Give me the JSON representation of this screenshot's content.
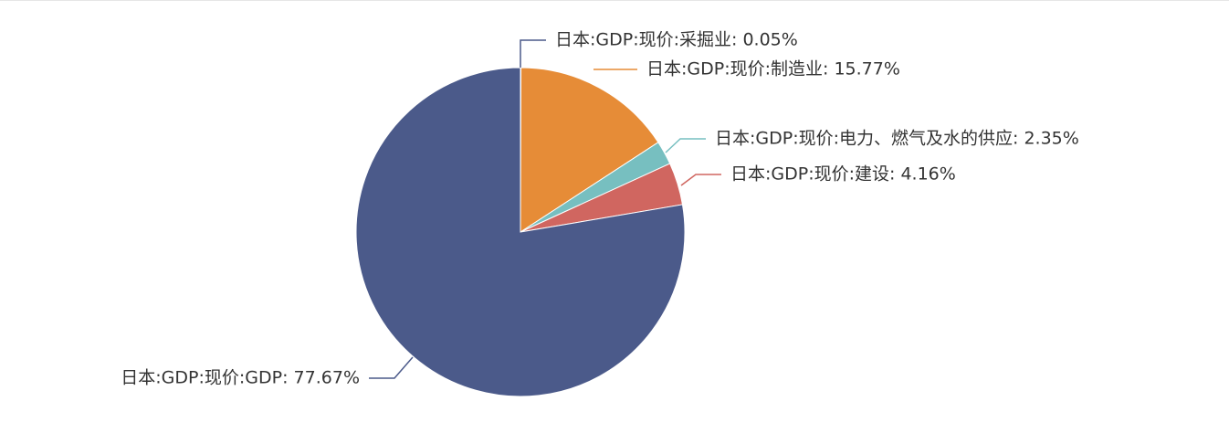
{
  "chart_data": {
    "type": "pie",
    "title": "",
    "slices": [
      {
        "name": "日本:GDP:现价:采掘业",
        "value": 0.05,
        "label": "日本:GDP:现价:采掘业: 0.05%",
        "color": "#4b5a8a"
      },
      {
        "name": "日本:GDP:现价:制造业",
        "value": 15.77,
        "label": "日本:GDP:现价:制造业: 15.77%",
        "color": "#e68c37"
      },
      {
        "name": "日本:GDP:现价:电力、燃气及水的供应",
        "value": 2.35,
        "label": "日本:GDP:现价:电力、燃气及水的供应: 2.35%",
        "color": "#77bfc0"
      },
      {
        "name": "日本:GDP:现价:建设",
        "value": 4.16,
        "label": "日本:GDP:现价:建设: 4.16%",
        "color": "#d06660"
      },
      {
        "name": "日本:GDP:现价:GDP",
        "value": 77.67,
        "label": "日本:GDP:现价:GDP: 77.67%",
        "color": "#4b5a8a"
      }
    ]
  }
}
